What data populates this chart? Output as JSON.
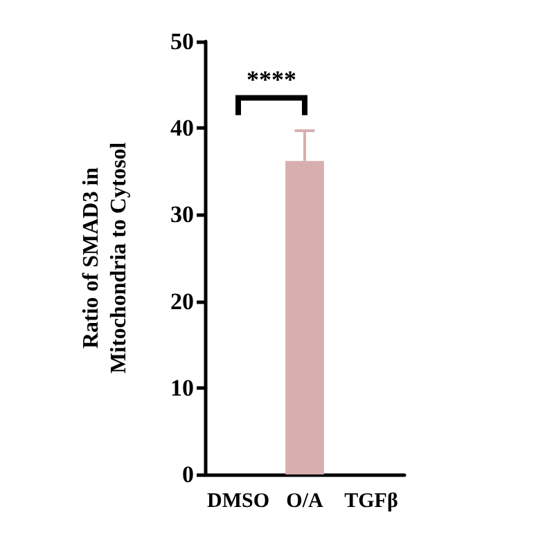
{
  "chart_data": {
    "type": "bar",
    "ylabel": "Ratio of SMAD3 in Mitochondria to Cytosol",
    "categories": [
      "DMSO",
      "O/A",
      "TGFβ"
    ],
    "values": [
      0,
      36.2,
      0
    ],
    "color": "#d8aeae",
    "errors": [
      null,
      [
        36.2,
        39.7
      ],
      null
    ],
    "ylim": [
      0,
      50
    ],
    "yticks": [
      0,
      10,
      20,
      30,
      40,
      50
    ],
    "annotations": [
      "****"
    ]
  }
}
